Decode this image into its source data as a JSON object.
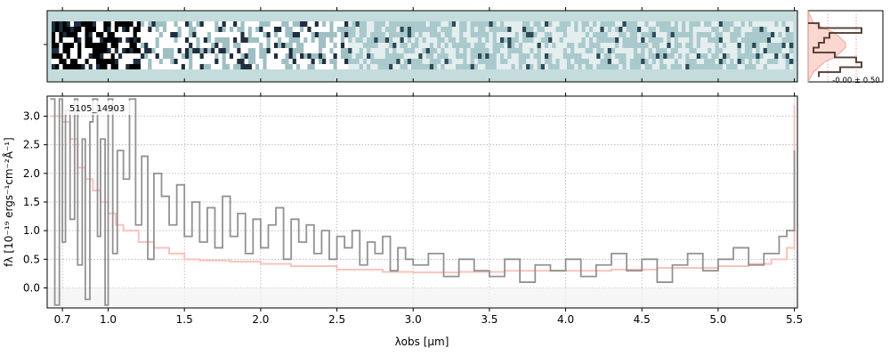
{
  "chart_data": [
    {
      "type": "heatmap",
      "title": "",
      "description_note": "",
      "rows": 9,
      "cols": 200,
      "colormap": [
        "#ffffff",
        "#c5dcdc",
        "#1f2f3f",
        "#000000"
      ],
      "background_color": "#c5dcdc"
    },
    {
      "type": "line",
      "subplot": "spatial-profile",
      "series": [
        {
          "color": "#000000",
          "values": [
            0.2,
            1.0,
            0.4,
            0.3,
            0.2,
            0.1,
            0.5,
            0.9,
            1.0,
            0.6,
            0.2
          ]
        },
        {
          "color": "#f4a7a0",
          "values": [
            0.1,
            0.3,
            0.5,
            0.6,
            0.7,
            0.7,
            0.6,
            0.5,
            0.3,
            0.2,
            0.1
          ]
        }
      ],
      "annotation": "-0.00 ± 0.50"
    },
    {
      "type": "line",
      "subplot": "spectrum",
      "label": "5105_14903",
      "xlabel": "λobs [μm]",
      "ylabel": "fλ [10⁻¹⁹ ergs⁻¹cm⁻²Å⁻¹]",
      "x_ticks": [
        0.7,
        1.0,
        1.5,
        2.0,
        2.5,
        3.0,
        3.5,
        4.0,
        4.5,
        5.0,
        5.5
      ],
      "y_ticks": [
        0.0,
        0.5,
        1.0,
        1.5,
        2.0,
        2.5,
        3.0
      ],
      "xlim": [
        0.6,
        5.52
      ],
      "ylim": [
        -0.35,
        3.35
      ],
      "grid": true,
      "series": [
        {
          "name": "",
          "color": "#8c8c8c",
          "style": "step",
          "x": [
            0.62,
            0.65,
            0.68,
            0.7,
            0.72,
            0.75,
            0.78,
            0.8,
            0.83,
            0.85,
            0.88,
            0.9,
            0.93,
            0.95,
            0.98,
            1.0,
            1.03,
            1.06,
            1.1,
            1.14,
            1.18,
            1.22,
            1.26,
            1.3,
            1.35,
            1.4,
            1.45,
            1.5,
            1.55,
            1.6,
            1.65,
            1.7,
            1.75,
            1.8,
            1.85,
            1.9,
            1.95,
            2.0,
            2.05,
            2.1,
            2.15,
            2.2,
            2.25,
            2.3,
            2.35,
            2.4,
            2.45,
            2.5,
            2.55,
            2.6,
            2.65,
            2.7,
            2.75,
            2.8,
            2.85,
            2.9,
            2.95,
            3.0,
            3.1,
            3.2,
            3.3,
            3.4,
            3.5,
            3.6,
            3.7,
            3.8,
            3.9,
            4.0,
            4.1,
            4.2,
            4.3,
            4.4,
            4.5,
            4.6,
            4.7,
            4.8,
            4.9,
            5.0,
            5.1,
            5.2,
            5.3,
            5.4,
            5.45,
            5.5
          ],
          "y": [
            3.3,
            -0.3,
            3.3,
            0.8,
            3.1,
            1.2,
            3.3,
            0.4,
            2.6,
            -0.2,
            2.9,
            3.3,
            0.9,
            2.6,
            -0.3,
            3.3,
            0.6,
            2.4,
            1.9,
            3.3,
            1.1,
            2.3,
            0.5,
            2.0,
            1.6,
            1.1,
            1.8,
            0.9,
            1.5,
            0.8,
            1.4,
            0.7,
            1.6,
            0.9,
            1.3,
            0.6,
            1.2,
            0.7,
            1.1,
            1.4,
            0.5,
            1.2,
            0.8,
            1.1,
            0.6,
            1.0,
            0.5,
            0.9,
            0.7,
            1.0,
            0.4,
            0.8,
            0.6,
            0.9,
            0.3,
            0.7,
            0.5,
            0.4,
            0.6,
            0.2,
            0.5,
            0.3,
            0.2,
            0.5,
            0.1,
            0.4,
            0.3,
            0.5,
            0.2,
            0.4,
            0.6,
            0.3,
            0.5,
            0.1,
            0.4,
            0.6,
            0.3,
            0.5,
            0.7,
            0.4,
            0.6,
            0.9,
            1.0,
            2.4
          ]
        },
        {
          "name": "",
          "color": "#f9c2bd",
          "style": "step",
          "x": [
            0.62,
            0.65,
            0.7,
            0.75,
            0.8,
            0.85,
            0.9,
            0.95,
            1.0,
            1.05,
            1.1,
            1.2,
            1.3,
            1.4,
            1.5,
            1.6,
            1.8,
            2.0,
            2.2,
            2.5,
            2.8,
            3.0,
            3.3,
            3.6,
            4.0,
            4.3,
            4.6,
            5.0,
            5.2,
            5.35,
            5.45,
            5.5
          ],
          "y": [
            3.0,
            3.0,
            2.9,
            2.6,
            2.1,
            1.9,
            1.7,
            1.5,
            1.3,
            1.1,
            1.0,
            0.8,
            0.7,
            0.6,
            0.5,
            0.48,
            0.46,
            0.42,
            0.38,
            0.32,
            0.28,
            0.27,
            0.28,
            0.3,
            0.3,
            0.32,
            0.35,
            0.38,
            0.42,
            0.5,
            0.7,
            3.2
          ]
        }
      ]
    }
  ]
}
